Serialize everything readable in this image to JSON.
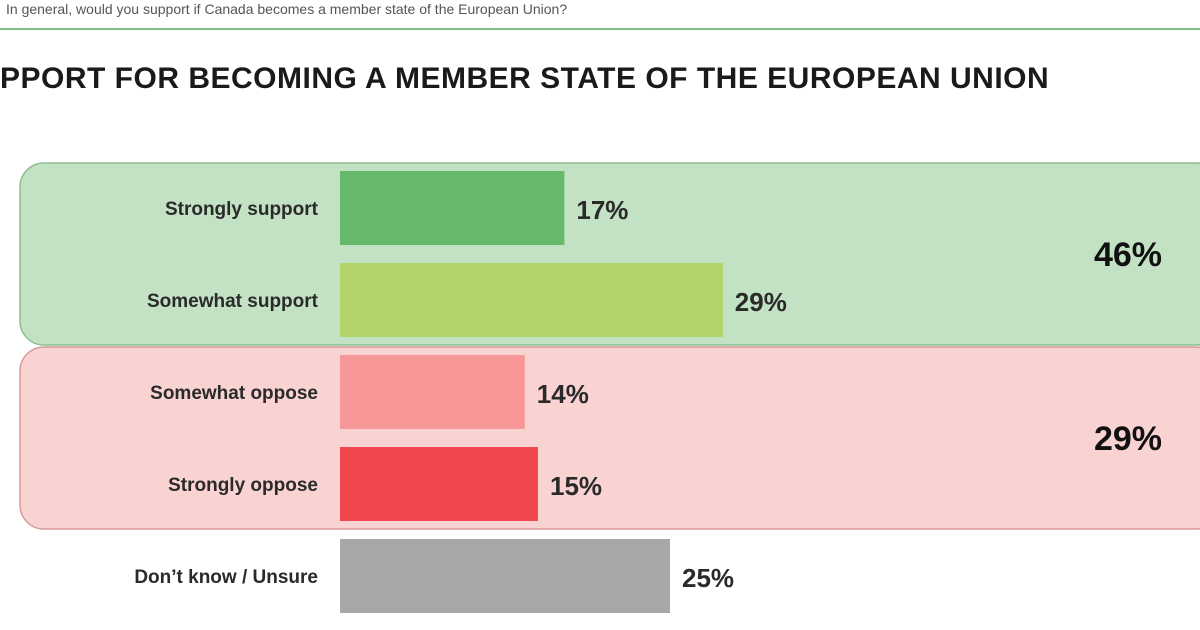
{
  "question": "In general, would you support if Canada becomes a member state of the European Union?",
  "chart_data": {
    "type": "bar",
    "orientation": "horizontal",
    "title": "PPORT FOR BECOMING A MEMBER STATE OF THE EUROPEAN UNION",
    "categories": [
      "Strongly support",
      "Somewhat support",
      "Somewhat oppose",
      "Strongly oppose",
      "Don’t know / Unsure"
    ],
    "values": [
      17,
      29,
      14,
      15,
      25
    ],
    "value_labels": [
      "17%",
      "29%",
      "14%",
      "15%",
      "25%"
    ],
    "colors": [
      "#66b86a",
      "#b2d46a",
      "#f79797",
      "#f2474f",
      "#a7a7a9"
    ],
    "groups": [
      {
        "total_label": "46%",
        "members": [
          0,
          1
        ],
        "background": "#c3e2c4",
        "border": "#8bbf8e"
      },
      {
        "total_label": "29%",
        "members": [
          2,
          3
        ],
        "background": "#f9d2d2",
        "border": "#d89a9a"
      }
    ],
    "xlim": [
      0,
      100
    ],
    "grid": false,
    "legend": "none"
  }
}
